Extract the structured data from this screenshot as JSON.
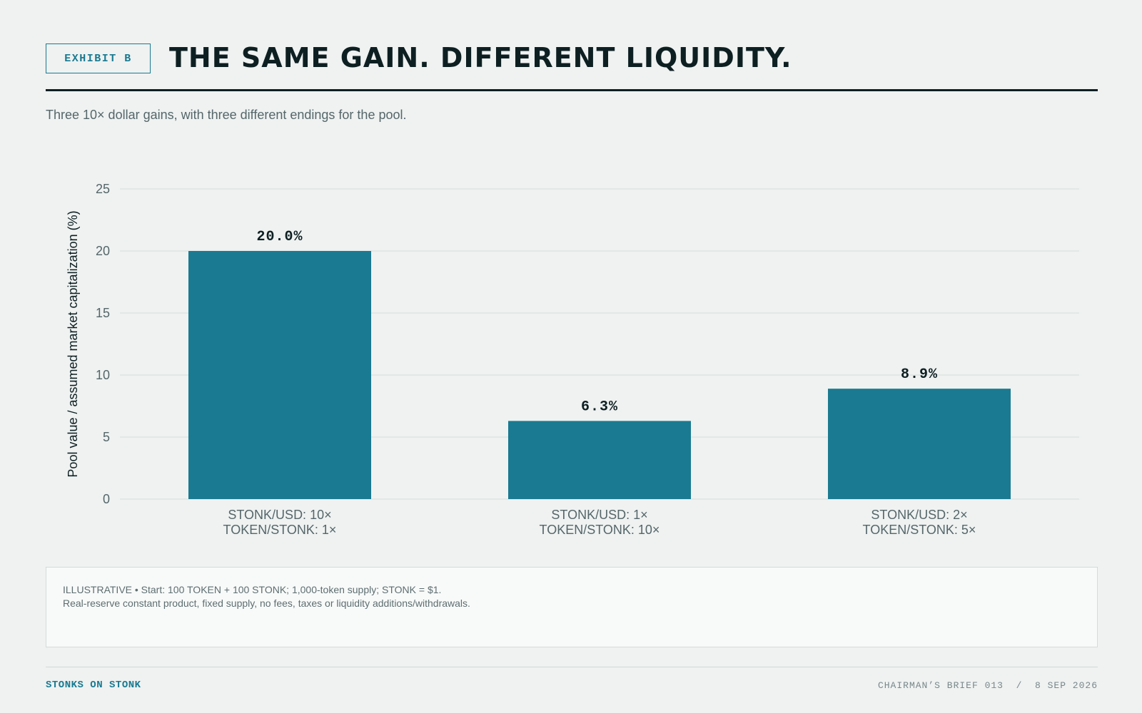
{
  "header": {
    "tag": "EXHIBIT B",
    "title": "THE SAME GAIN. DIFFERENT LIQUIDITY.",
    "subtitle": "Three 10× dollar gains, with three different endings for the pool."
  },
  "chart_data": {
    "type": "bar",
    "categories": [
      [
        "STONK/USD: 10×",
        "TOKEN/STONK: 1×"
      ],
      [
        "STONK/USD: 1×",
        "TOKEN/STONK: 10×"
      ],
      [
        "STONK/USD: 2×",
        "TOKEN/STONK: 5×"
      ]
    ],
    "values": [
      20.0,
      6.3,
      8.9
    ],
    "data_labels": [
      "20.0%",
      "6.3%",
      "8.9%"
    ],
    "xlabel": "",
    "ylabel": "Pool value / assumed market capitalization (%)",
    "ylim": [
      0,
      25
    ],
    "yticks": [
      0,
      5,
      10,
      15,
      20,
      25
    ],
    "grid": true,
    "colors": {
      "bar": "#1a7a91",
      "grid": "#d7dedd",
      "tick": "#55666a",
      "label": "#0e1f22"
    }
  },
  "notes": {
    "line1": "ILLUSTRATIVE • Start: 100 TOKEN + 100 STONK; 1,000-token supply; STONK = $1.",
    "line2": "Real-reserve constant product, fixed supply, no fees, taxes or liquidity additions/withdrawals."
  },
  "footer": {
    "brand": "STONKS ON STONK",
    "brief": "CHAIRMAN’S BRIEF 013  /  8 SEP 2026"
  }
}
